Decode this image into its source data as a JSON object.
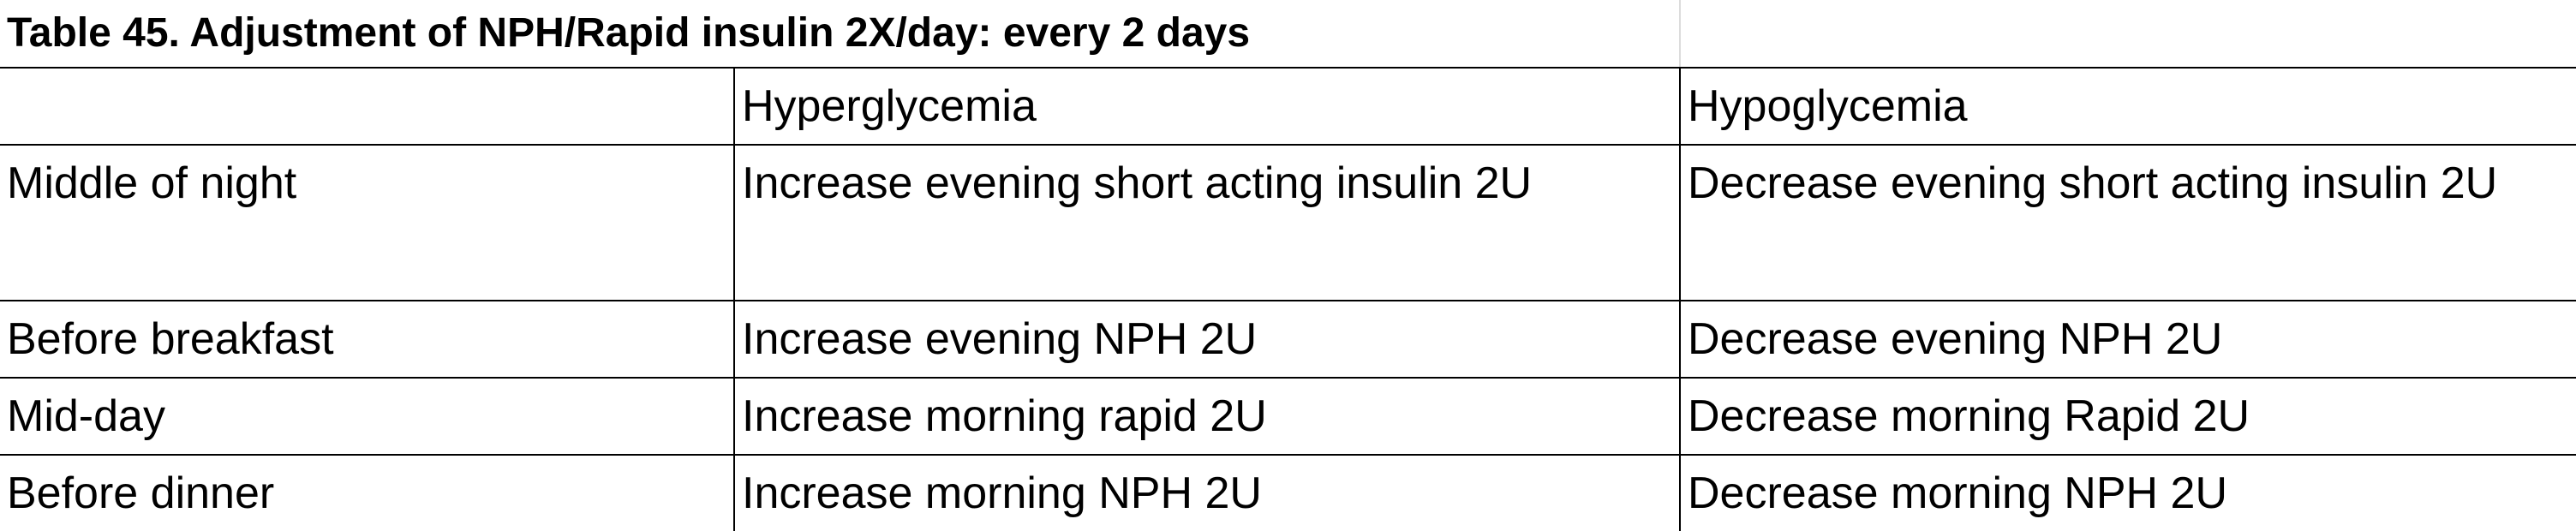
{
  "title": "Table 45. Adjustment of NPH/Rapid insulin 2X/day: every 2 days",
  "table": {
    "header": [
      "",
      "Hyperglycemia",
      "Hypoglycemia"
    ],
    "rows": [
      [
        "Middle of night",
        "Increase evening short acting insulin 2U",
        "Decrease evening short acting insulin 2U"
      ],
      [
        "Before breakfast",
        "Increase evening NPH 2U",
        "Decrease evening NPH 2U"
      ],
      [
        "Mid-day",
        "Increase morning rapid 2U",
        "Decrease morning Rapid 2U"
      ],
      [
        "Before dinner",
        "Increase morning NPH 2U",
        "Decrease morning NPH 2U"
      ]
    ]
  }
}
